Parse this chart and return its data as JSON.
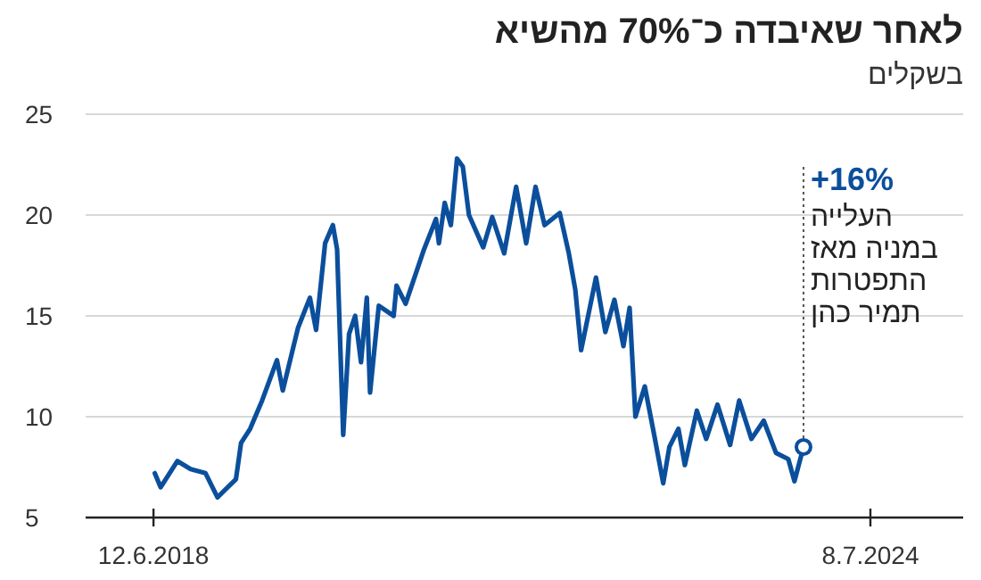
{
  "chart_data": {
    "type": "line",
    "title": "לאחר שאיבדה כ־70% מהשיא",
    "subtitle": "בשקלים",
    "x": [
      "2018-06-16",
      "2018-07-04",
      "2018-08-25",
      "2018-10-05",
      "2018-11-20",
      "2018-12-27",
      "2019-02-22",
      "2019-03-10",
      "2019-04-07",
      "2019-05-14",
      "2019-06-29",
      "2019-07-17",
      "2019-09-02",
      "2019-10-09",
      "2019-10-28",
      "2019-11-25",
      "2019-12-19",
      "2020-01-01",
      "2020-01-20",
      "2020-02-07",
      "2020-02-26",
      "2020-03-15",
      "2020-04-02",
      "2020-04-12",
      "2020-05-09",
      "2020-06-24",
      "2020-07-03",
      "2020-07-31",
      "2020-09-26",
      "2020-11-02",
      "2020-11-11",
      "2020-11-29",
      "2020-12-18",
      "2021-01-06",
      "2021-01-24",
      "2021-02-12",
      "2021-03-28",
      "2021-04-25",
      "2021-06-01",
      "2021-07-08",
      "2021-08-08",
      "2021-09-06",
      "2021-10-04",
      "2021-11-20",
      "2021-12-18",
      "2022-01-07",
      "2022-01-25",
      "2022-03-12",
      "2022-04-10",
      "2022-05-08",
      "2022-06-05",
      "2022-06-24",
      "2022-07-12",
      "2022-08-10",
      "2022-09-08",
      "2022-10-06",
      "2022-10-25",
      "2022-11-22",
      "2022-12-12",
      "2023-01-18",
      "2023-02-16",
      "2023-03-23",
      "2023-05-01",
      "2023-05-29",
      "2023-07-06",
      "2023-08-13",
      "2023-09-20",
      "2023-10-28",
      "2023-11-16",
      "2023-12-14"
    ],
    "series": [
      {
        "color": "#0b4f9c",
        "values": [
          7.2,
          6.5,
          7.8,
          7.4,
          7.2,
          6.0,
          6.9,
          8.7,
          9.4,
          10.8,
          12.8,
          11.3,
          14.4,
          15.9,
          14.3,
          18.6,
          19.5,
          18.3,
          9.1,
          14.1,
          15.0,
          12.7,
          15.9,
          11.2,
          15.5,
          15.0,
          16.5,
          15.6,
          18.3,
          19.8,
          18.6,
          20.6,
          19.5,
          22.8,
          22.4,
          20.0,
          18.4,
          19.9,
          18.1,
          21.4,
          18.6,
          21.4,
          19.5,
          20.1,
          18.1,
          16.3,
          13.3,
          16.9,
          14.2,
          15.8,
          13.5,
          15.4,
          10.0,
          11.5,
          9.1,
          6.7,
          8.5,
          9.4,
          7.6,
          10.3,
          8.9,
          10.6,
          8.6,
          10.8,
          8.9,
          9.8,
          8.2,
          7.9,
          6.8,
          8.5
        ]
      }
    ],
    "xlim": [
      "2017-11-14",
      "2025-04-21"
    ],
    "xticks": [
      {
        "value": "2018-06-12",
        "label": "12.6.2018"
      },
      {
        "value": "2024-07-08",
        "label": "8.7.2024"
      }
    ],
    "ylim": [
      5,
      25
    ],
    "yticks": [
      5,
      10,
      15,
      20,
      25
    ],
    "grid": "y",
    "annotations": [
      {
        "text": "+16%",
        "x": "2023-12-14",
        "y": 8.5
      },
      "העלייה במניה מאז התפטרות תמיר כהן"
    ]
  }
}
